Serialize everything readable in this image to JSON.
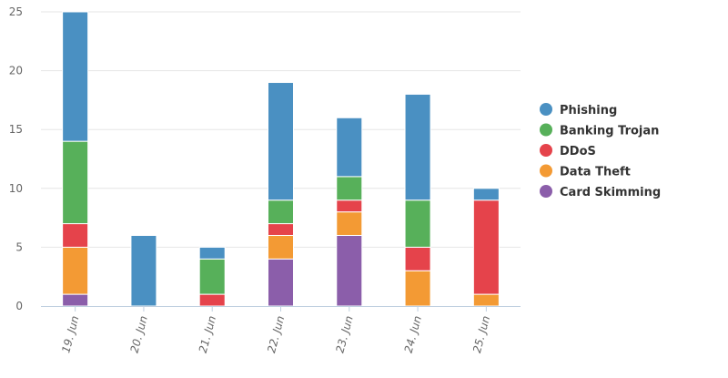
{
  "chart_data": {
    "type": "bar",
    "stacked": true,
    "categories": [
      "19. Jun",
      "20. Jun",
      "21. Jun",
      "22. Jun",
      "23. Jun",
      "24. Jun",
      "25. Jun"
    ],
    "series": [
      {
        "name": "Phishing",
        "color": "#4a90c2",
        "values": [
          11,
          6,
          1,
          10,
          5,
          9,
          1
        ]
      },
      {
        "name": "Banking Trojan",
        "color": "#57b05a",
        "values": [
          7,
          0,
          3,
          2,
          2,
          4,
          0
        ]
      },
      {
        "name": "DDoS",
        "color": "#e5434b",
        "values": [
          2,
          0,
          1,
          1,
          1,
          2,
          8
        ]
      },
      {
        "name": "Data Theft",
        "color": "#f39a34",
        "values": [
          4,
          0,
          0,
          2,
          2,
          3,
          1
        ]
      },
      {
        "name": "Card Skimming",
        "color": "#8b5eaa",
        "values": [
          1,
          0,
          0,
          4,
          6,
          0,
          0
        ]
      }
    ],
    "y_ticks": [
      0,
      5,
      10,
      15,
      20,
      25
    ],
    "ylim": [
      0,
      25
    ],
    "grid": true,
    "legend_position": "right",
    "title": "",
    "xlabel": "",
    "ylabel": ""
  }
}
